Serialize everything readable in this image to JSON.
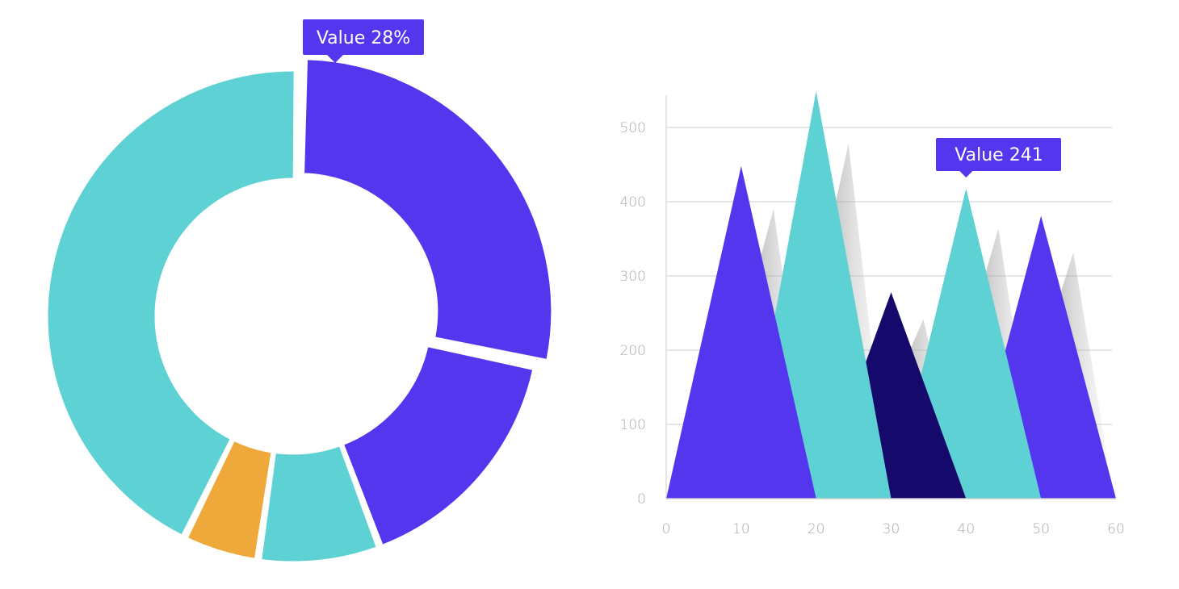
{
  "chart_data": [
    {
      "type": "pie",
      "variant": "donut",
      "slices": [
        {
          "value": 28,
          "color": "#5536ef",
          "exploded": true
        },
        {
          "value": 16,
          "color": "#5536ef"
        },
        {
          "value": 8,
          "color": "#5ed1d4"
        },
        {
          "value": 5,
          "color": "#efa83a"
        },
        {
          "value": 43,
          "color": "#5ed1d4"
        }
      ],
      "tooltip": {
        "text": "Value 28%",
        "color": "#5536ef"
      }
    },
    {
      "type": "area",
      "variant": "triangle-peaks",
      "xlim": [
        0,
        60
      ],
      "ylim": [
        0,
        540
      ],
      "x_ticks": [
        "0",
        "10",
        "20",
        "30",
        "40",
        "50",
        "60"
      ],
      "y_ticks": [
        "0",
        "100",
        "200",
        "300",
        "400",
        "500"
      ],
      "grid": true,
      "series": [
        {
          "x": [
            0,
            10,
            20
          ],
          "y": [
            0,
            448,
            0
          ],
          "color": "#5536ef"
        },
        {
          "x": [
            10,
            20,
            30
          ],
          "y": [
            0,
            549,
            0
          ],
          "color": "#5ed1d4"
        },
        {
          "x": [
            20,
            30,
            40
          ],
          "y": [
            0,
            278,
            0
          ],
          "color": "#150a6b"
        },
        {
          "x": [
            30,
            40,
            50
          ],
          "y": [
            0,
            418,
            0
          ],
          "color": "#5ed1d4"
        },
        {
          "x": [
            40,
            50,
            60
          ],
          "y": [
            0,
            381,
            0
          ],
          "color": "#5536ef"
        }
      ],
      "tooltip": {
        "text": "Value 241",
        "color": "#5536ef",
        "at_x": 40
      }
    }
  ]
}
